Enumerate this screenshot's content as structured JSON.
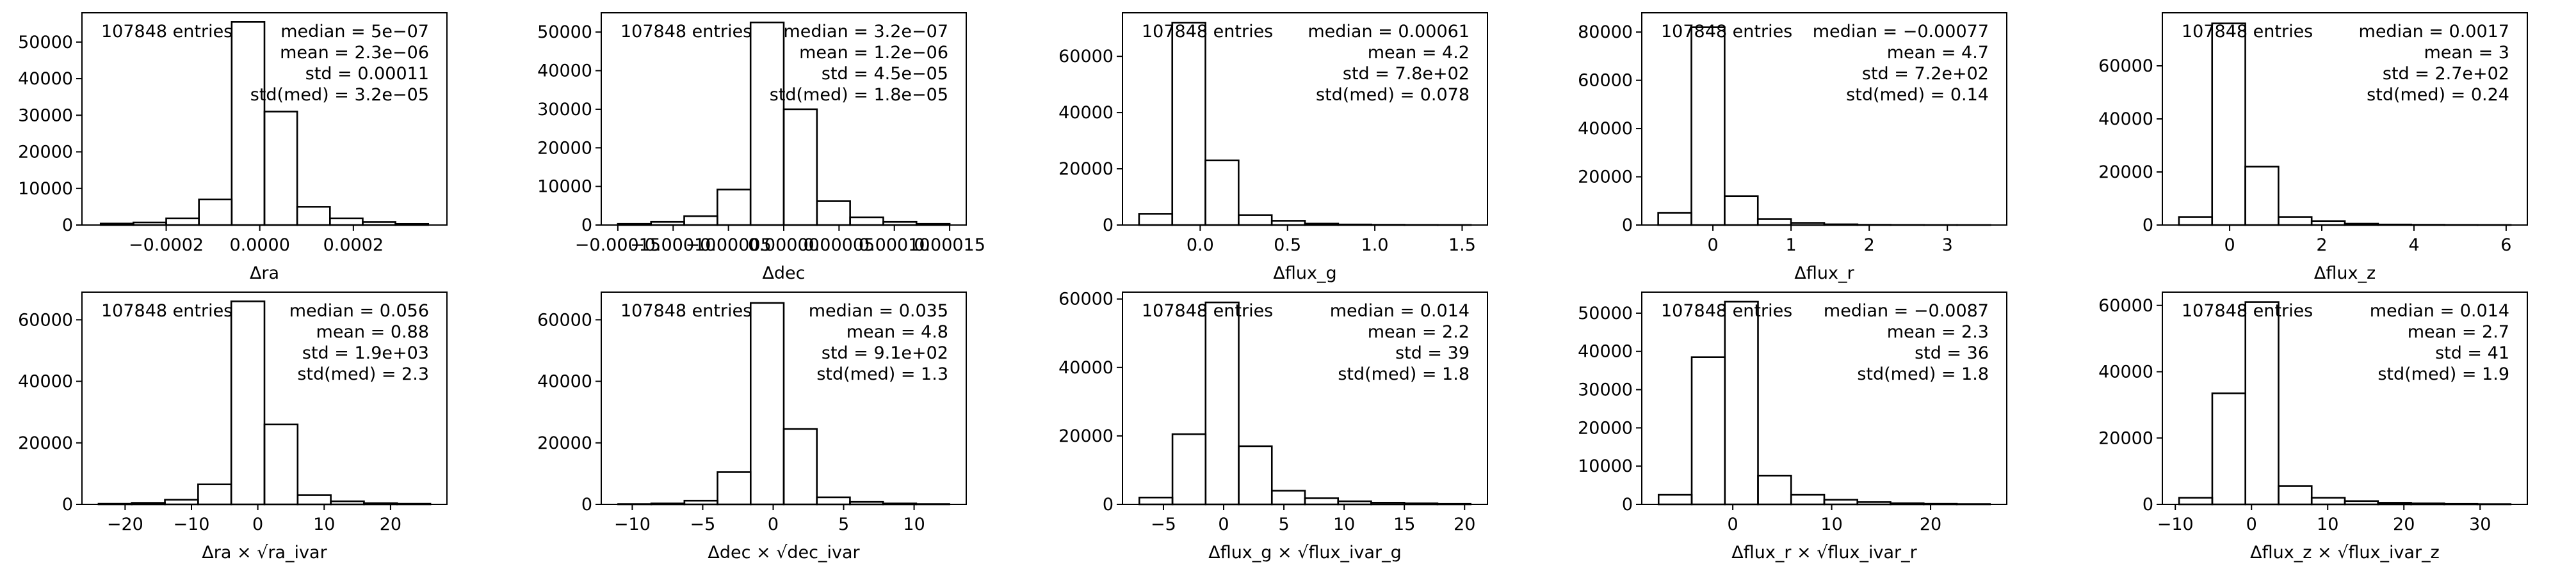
{
  "chart_data": [
    {
      "type": "histogram",
      "xlabel": "Δra",
      "entries_label": "107848 entries",
      "stats": [
        "median = 5e−07",
        "mean = 2.3e−06",
        "std = 0.00011",
        "std(med) = 3.2e−05"
      ],
      "bins": [
        -0.00034,
        -0.00027,
        -0.0002,
        -0.00013,
        -6e-05,
        1e-05,
        8e-05,
        0.00015,
        0.00022,
        0.00029,
        0.00036
      ],
      "values": [
        400,
        700,
        1800,
        7000,
        55500,
        31000,
        5000,
        1800,
        800,
        300
      ],
      "xlim": [
        -0.00038,
        0.0004
      ],
      "xticks": [
        {
          "value": -0.0002,
          "label": "−0.0002"
        },
        {
          "value": 0,
          "label": "0.0000"
        },
        {
          "value": 0.0002,
          "label": "0.0002"
        }
      ],
      "ylim": [
        0,
        58000
      ],
      "yticks": [
        0,
        10000,
        20000,
        30000,
        40000,
        50000
      ]
    },
    {
      "type": "histogram",
      "xlabel": "Δdec",
      "entries_label": "107848 entries",
      "stats": [
        "median = 3.2e−07",
        "mean = 1.2e−06",
        "std = 4.5e−05",
        "std(med) = 1.8e−05"
      ],
      "bins": [
        -0.00015,
        -0.00012,
        -9e-05,
        -6e-05,
        -3e-05,
        0,
        3e-05,
        6e-05,
        9e-05,
        0.00012,
        0.00015
      ],
      "values": [
        300,
        800,
        2300,
        9200,
        52500,
        30000,
        6200,
        2000,
        800,
        300
      ],
      "xlim": [
        -0.000165,
        0.000165
      ],
      "xticks": [
        {
          "value": -0.00015,
          "label": "−0.00015"
        },
        {
          "value": -0.0001,
          "label": "−0.00010"
        },
        {
          "value": -5e-05,
          "label": "−0.00005"
        },
        {
          "value": 0,
          "label": "0.00000"
        },
        {
          "value": 5e-05,
          "label": "0.00005"
        },
        {
          "value": 0.0001,
          "label": "0.00010"
        },
        {
          "value": 0.00015,
          "label": "0.00015"
        }
      ],
      "ylim": [
        0,
        55000
      ],
      "yticks": [
        0,
        10000,
        20000,
        30000,
        40000,
        50000
      ]
    },
    {
      "type": "histogram",
      "xlabel": "Δflux_g",
      "entries_label": "107848 entries",
      "stats": [
        "median = 0.00061",
        "mean = 4.2",
        "std = 7.8e+02",
        "std(med) = 0.078"
      ],
      "bins": [
        -0.35,
        -0.16,
        0.03,
        0.22,
        0.41,
        0.6,
        0.79,
        0.98,
        1.17,
        1.36,
        1.55
      ],
      "values": [
        4000,
        72000,
        23000,
        3500,
        1500,
        500,
        200,
        100,
        50,
        30
      ],
      "xlim": [
        -0.445,
        1.645
      ],
      "xticks": [
        {
          "value": 0,
          "label": "0.0"
        },
        {
          "value": 0.5,
          "label": "0.5"
        },
        {
          "value": 1,
          "label": "1.0"
        },
        {
          "value": 1.5,
          "label": "1.5"
        }
      ],
      "ylim": [
        0,
        75500
      ],
      "yticks": [
        0,
        20000,
        40000,
        60000
      ]
    },
    {
      "type": "histogram",
      "xlabel": "Δflux_r",
      "entries_label": "107848 entries",
      "stats": [
        "median = −0.00077",
        "mean = 4.7",
        "std = 7.2e+02",
        "std(med) = 0.14"
      ],
      "bins": [
        -0.7,
        -0.275,
        0.15,
        0.575,
        1,
        1.425,
        1.85,
        2.275,
        2.7,
        3.125,
        3.55
      ],
      "values": [
        5000,
        82000,
        12000,
        2500,
        900,
        300,
        100,
        50,
        20,
        10
      ],
      "xlim": [
        -0.91,
        3.76
      ],
      "xticks": [
        0,
        1,
        2,
        3
      ],
      "ylim": [
        0,
        88000
      ],
      "yticks": [
        0,
        20000,
        40000,
        60000,
        80000
      ]
    },
    {
      "type": "histogram",
      "xlabel": "Δflux_z",
      "entries_label": "107848 entries",
      "stats": [
        "median = 0.0017",
        "mean = 3",
        "std = 2.7e+02",
        "std(med) = 0.24"
      ],
      "bins": [
        -1.1,
        -0.38,
        0.34,
        1.06,
        1.78,
        2.5,
        3.22,
        3.94,
        4.66,
        5.38,
        6.1
      ],
      "values": [
        3000,
        76000,
        22000,
        3000,
        1500,
        500,
        200,
        100,
        50,
        30
      ],
      "xlim": [
        -1.46,
        6.46
      ],
      "xticks": [
        0,
        2,
        4,
        6
      ],
      "ylim": [
        0,
        80000
      ],
      "yticks": [
        0,
        20000,
        40000,
        60000
      ]
    },
    {
      "type": "histogram",
      "xlabel": "Δra × √ra_ivar",
      "entries_label": "107848 entries",
      "stats": [
        "median = 0.056",
        "mean = 0.88",
        "std = 1.9e+03",
        "std(med) = 2.3"
      ],
      "bins": [
        -24,
        -19,
        -14,
        -9,
        -4,
        1,
        6,
        11,
        16,
        21,
        26
      ],
      "values": [
        200,
        500,
        1500,
        6500,
        66000,
        26000,
        3000,
        1000,
        400,
        200
      ],
      "xlim": [
        -26.5,
        28.5
      ],
      "xticks": [
        {
          "value": -20,
          "label": "−20"
        },
        {
          "value": -10,
          "label": "−10"
        },
        0,
        10,
        20
      ],
      "ylim": [
        0,
        69000
      ],
      "yticks": [
        0,
        20000,
        40000,
        60000
      ]
    },
    {
      "type": "histogram",
      "xlabel": "Δdec × √dec_ivar",
      "entries_label": "107848 entries",
      "stats": [
        "median = 0.035",
        "mean = 4.8",
        "std = 9.1e+02",
        "std(med) = 1.3"
      ],
      "bins": [
        -11,
        -8.65,
        -6.3,
        -3.95,
        -1.6,
        0.75,
        3.1,
        5.45,
        7.8,
        10.15,
        12.5
      ],
      "values": [
        100,
        300,
        1200,
        10500,
        65500,
        24500,
        2300,
        800,
        300,
        100
      ],
      "xlim": [
        -12.2,
        13.7
      ],
      "xticks": [
        {
          "value": -10,
          "label": "−10"
        },
        {
          "value": -5,
          "label": "−5"
        },
        0,
        5,
        10
      ],
      "ylim": [
        0,
        69000
      ],
      "yticks": [
        0,
        20000,
        40000,
        60000
      ]
    },
    {
      "type": "histogram",
      "xlabel": "Δflux_g × √flux_ivar_g",
      "entries_label": "107848 entries",
      "stats": [
        "median = 0.014",
        "mean = 2.2",
        "std = 39",
        "std(med) = 1.8"
      ],
      "bins": [
        -7,
        -4.25,
        -1.5,
        1.25,
        4,
        6.75,
        9.5,
        12.25,
        15,
        17.75,
        20.5
      ],
      "values": [
        2000,
        20500,
        59000,
        17000,
        4000,
        1800,
        900,
        500,
        300,
        150
      ],
      "xlim": [
        -8.4,
        21.9
      ],
      "xticks": [
        {
          "value": -5,
          "label": "−5"
        },
        0,
        5,
        10,
        15,
        20
      ],
      "ylim": [
        0,
        62000
      ],
      "yticks": [
        0,
        20000,
        40000,
        60000
      ]
    },
    {
      "type": "histogram",
      "xlabel": "Δflux_r × √flux_ivar_r",
      "entries_label": "107848 entries",
      "stats": [
        "median = −0.0087",
        "mean = 2.3",
        "std = 36",
        "std(med) = 1.8"
      ],
      "bins": [
        -7.5,
        -4.15,
        -0.8,
        2.55,
        5.9,
        9.25,
        12.6,
        15.95,
        19.3,
        22.65,
        26
      ],
      "values": [
        2500,
        38500,
        53000,
        7500,
        2500,
        1200,
        600,
        300,
        150,
        80
      ],
      "xlim": [
        -9.2,
        27.7
      ],
      "xticks": [
        0,
        10,
        20
      ],
      "ylim": [
        0,
        55500
      ],
      "yticks": [
        0,
        10000,
        20000,
        30000,
        40000,
        50000
      ]
    },
    {
      "type": "histogram",
      "xlabel": "Δflux_z × √flux_ivar_z",
      "entries_label": "107848 entries",
      "stats": [
        "median = 0.014",
        "mean = 2.7",
        "std = 41",
        "std(med) = 1.9"
      ],
      "bins": [
        -9.5,
        -5.15,
        -0.8,
        3.55,
        7.9,
        12.25,
        16.6,
        20.95,
        25.3,
        29.65,
        34
      ],
      "values": [
        2000,
        33500,
        61000,
        5500,
        2000,
        1000,
        500,
        300,
        150,
        80
      ],
      "xlim": [
        -11.7,
        36.2
      ],
      "xticks": [
        {
          "value": -10,
          "label": "−10"
        },
        0,
        10,
        20,
        30
      ],
      "ylim": [
        0,
        64000
      ],
      "yticks": [
        0,
        20000,
        40000,
        60000
      ]
    }
  ]
}
